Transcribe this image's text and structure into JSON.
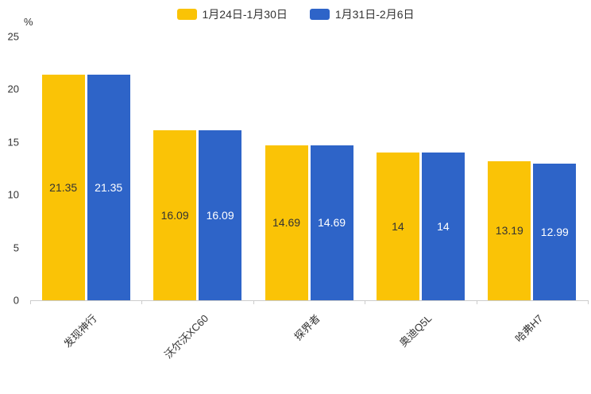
{
  "chart_data": {
    "type": "bar",
    "title": "",
    "ylabel": "%",
    "xlabel": "",
    "ylim": [
      0,
      25
    ],
    "yticks": [
      0,
      5,
      10,
      15,
      20,
      25
    ],
    "grid": false,
    "legend_position": "top",
    "categories": [
      "发现神行",
      "沃尔沃XC60",
      "探界者",
      "奥迪Q5L",
      "哈弗H7"
    ],
    "series": [
      {
        "name": "1月24日-1月30日",
        "color": "#FAC306",
        "label_color": "#333333",
        "values": [
          21.35,
          16.09,
          14.69,
          14,
          13.19
        ],
        "value_labels": [
          "21.35",
          "16.09",
          "14.69",
          "14",
          "13.19"
        ]
      },
      {
        "name": "1月31日-2月6日",
        "color": "#2E64C8",
        "label_color": "#ffffff",
        "values": [
          21.35,
          16.09,
          14.69,
          14,
          12.99
        ],
        "value_labels": [
          "21.35",
          "16.09",
          "14.69",
          "14",
          "12.99"
        ]
      }
    ],
    "axis_color": "#cccccc"
  }
}
